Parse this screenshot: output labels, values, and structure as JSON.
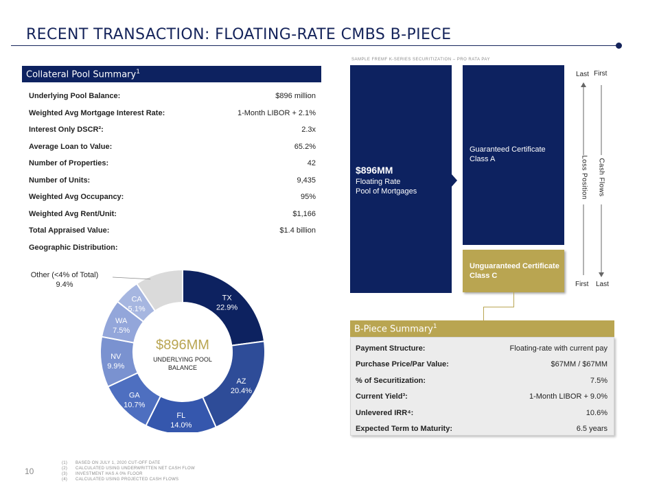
{
  "title": "RECENT TRANSACTION: FLOATING-RATE CMBS B-PIECE",
  "collateral": {
    "header": "Collateral Pool Summary",
    "header_sup": "1",
    "rows": [
      {
        "label": "Underlying Pool Balance:",
        "value": "$896 million"
      },
      {
        "label": "Weighted Avg Mortgage Interest Rate:",
        "value": "1-Month LIBOR + 2.1%"
      },
      {
        "label": "Interest Only DSCR²:",
        "value": "2.3x"
      },
      {
        "label": "Average Loan to Value:",
        "value": "65.2%"
      },
      {
        "label": "Number of Properties:",
        "value": "42"
      },
      {
        "label": "Number of Units:",
        "value": "9,435"
      },
      {
        "label": "Weighted Avg Occupancy:",
        "value": "95%"
      },
      {
        "label": "Weighted Avg Rent/Unit:",
        "value": "$1,166"
      },
      {
        "label": "Total Appraised Value:",
        "value": "$1.4 billion"
      },
      {
        "label": "Geographic Distribution:",
        "value": ""
      }
    ]
  },
  "chart_data": {
    "type": "pie",
    "donut": true,
    "center_value": "$896MM",
    "center_label_line1": "UNDERLYING POOL",
    "center_label_line2": "BALANCE",
    "slices": [
      {
        "label": "TX",
        "value": 22.9,
        "display": "22.9%",
        "color": "#0d2260"
      },
      {
        "label": "AZ",
        "value": 20.4,
        "display": "20.4%",
        "color": "#2e4c98"
      },
      {
        "label": "FL",
        "value": 14.0,
        "display": "14.0%",
        "color": "#3557ad"
      },
      {
        "label": "GA",
        "value": 10.7,
        "display": "10.7%",
        "color": "#4e6fc0"
      },
      {
        "label": "NV",
        "value": 9.9,
        "display": "9.9%",
        "color": "#7a92d0"
      },
      {
        "label": "WA",
        "value": 7.5,
        "display": "7.5%",
        "color": "#93a6da"
      },
      {
        "label": "CA",
        "value": 5.1,
        "display": "5.1%",
        "color": "#a6b6e0"
      },
      {
        "label": "Other (<4% of Total)",
        "value": 9.4,
        "display": "9.4%",
        "color": "#dadada"
      }
    ]
  },
  "structure": {
    "sample_label": "SAMPLE FREMF K-SERIES SECURITIZATION – PRO RATA PAY",
    "pool_amount": "$896MM",
    "pool_line1": "Floating Rate",
    "pool_line2": "Pool of Mortgages",
    "class_a_line1": "Guaranteed Certificate",
    "class_a_line2": "Class A",
    "class_c_line1": "Unguaranteed  Certificate",
    "class_c_line2": "Class C",
    "loss_position": "Loss Position",
    "cash_flows": "Cash Flows",
    "top_left": "Last",
    "top_right": "First",
    "bottom_left": "First",
    "bottom_right": "Last"
  },
  "bpiece": {
    "header": "B-Piece Summary",
    "header_sup": "1",
    "rows": [
      {
        "label": "Payment Structure:",
        "value": "Floating-rate with current pay"
      },
      {
        "label": "Purchase Price/Par Value:",
        "value": "$67MM / $67MM"
      },
      {
        "label": "% of Securitization:",
        "value": "7.5%"
      },
      {
        "label": "Current Yield³:",
        "value": "1-Month LIBOR + 9.0%"
      },
      {
        "label": "Unlevered IRR⁴:",
        "value": "10.6%"
      },
      {
        "label": "Expected Term to Maturity:",
        "value": "6.5 years"
      }
    ]
  },
  "page_number": "10",
  "footnotes": [
    {
      "num": "(1)",
      "text": "BASED ON JULY 1, 2020 CUT-OFF DATE"
    },
    {
      "num": "(2)",
      "text": "CALCULATED USING UNDERWRITTEN NET CASH FLOW"
    },
    {
      "num": "(3)",
      "text": "INVESTMENT HAS A 0% FLOOR"
    },
    {
      "num": "(4)",
      "text": "CALCULATED USING PROJECTED CASH FLOWS"
    }
  ]
}
